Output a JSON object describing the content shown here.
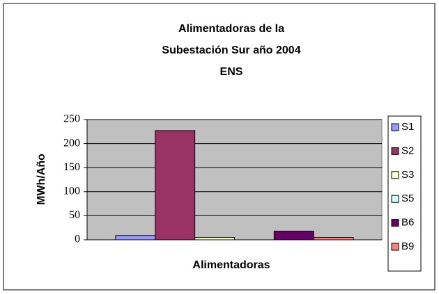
{
  "chart_data": {
    "type": "bar",
    "title": [
      "Alimentadoras de la",
      "Subestación Sur año 2004",
      "ENS"
    ],
    "x_label": "Alimentadoras",
    "y_label": "MWh/Año",
    "categories": [
      null
    ],
    "series": [
      {
        "name": "S1",
        "color": "#9999ff",
        "values": [
          9
        ]
      },
      {
        "name": "S2",
        "color": "#993366",
        "values": [
          227
        ]
      },
      {
        "name": "S3",
        "color": "#ffffcc",
        "values": [
          5
        ]
      },
      {
        "name": "S5",
        "color": "#ccffff",
        "values": [
          0
        ]
      },
      {
        "name": "B6",
        "color": "#660066",
        "values": [
          18
        ]
      },
      {
        "name": "B9",
        "color": "#ff8080",
        "values": [
          5
        ]
      }
    ],
    "ylim": [
      0,
      250
    ],
    "yticks": [
      0,
      50,
      100,
      150,
      200,
      250
    ],
    "grid": true,
    "legend": "right"
  }
}
